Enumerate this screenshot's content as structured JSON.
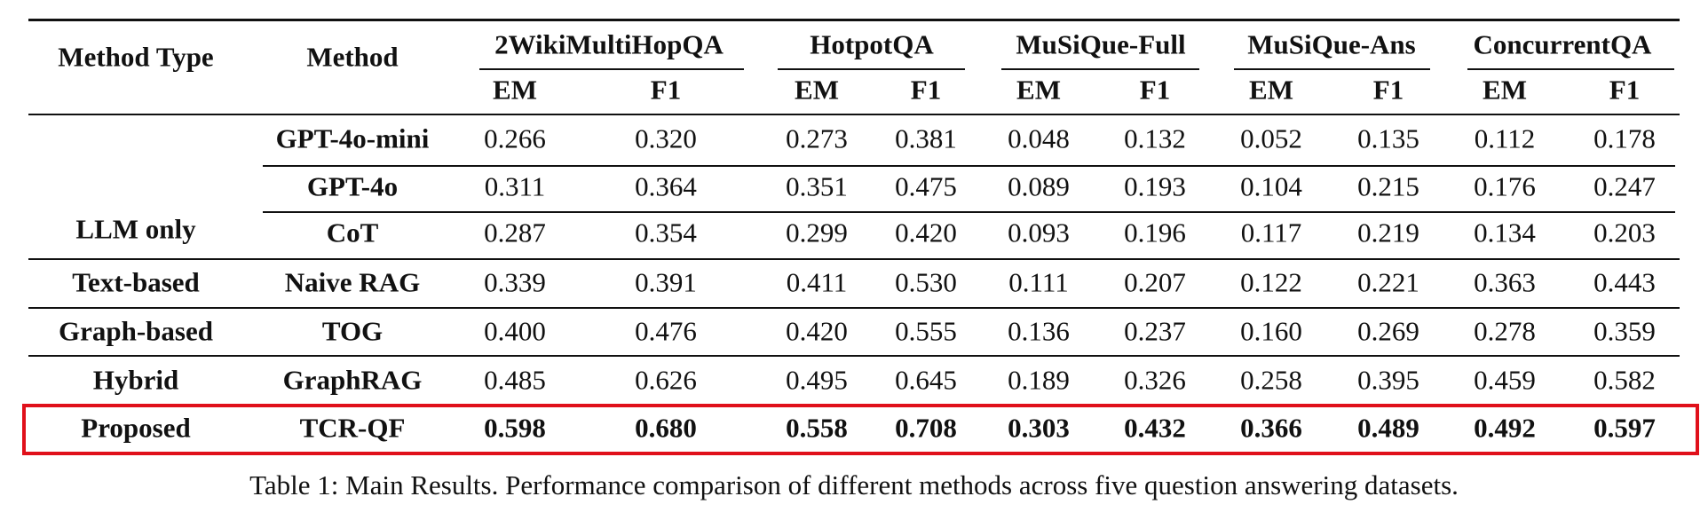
{
  "table": {
    "header": {
      "method_type": "Method Type",
      "method": "Method",
      "datasets": [
        "2WikiMultiHopQA",
        "HotpotQA",
        "MuSiQue-Full",
        "MuSiQue-Ans",
        "ConcurrentQA"
      ],
      "metrics": [
        "EM",
        "F1"
      ]
    },
    "rows": [
      {
        "type": "",
        "method": "GPT-4o-mini",
        "values": [
          "0.266",
          "0.320",
          "0.273",
          "0.381",
          "0.048",
          "0.132",
          "0.052",
          "0.135",
          "0.112",
          "0.178"
        ],
        "bold": false
      },
      {
        "type": "",
        "method": "GPT-4o",
        "values": [
          "0.311",
          "0.364",
          "0.351",
          "0.475",
          "0.089",
          "0.193",
          "0.104",
          "0.215",
          "0.176",
          "0.247"
        ],
        "bold": false
      },
      {
        "type": "LLM only",
        "method": "CoT",
        "values": [
          "0.287",
          "0.354",
          "0.299",
          "0.420",
          "0.093",
          "0.196",
          "0.117",
          "0.219",
          "0.134",
          "0.203"
        ],
        "bold": false
      },
      {
        "type": "Text-based",
        "method": "Naive RAG",
        "values": [
          "0.339",
          "0.391",
          "0.411",
          "0.530",
          "0.111",
          "0.207",
          "0.122",
          "0.221",
          "0.363",
          "0.443"
        ],
        "bold": false
      },
      {
        "type": "Graph-based",
        "method": "TOG",
        "values": [
          "0.400",
          "0.476",
          "0.420",
          "0.555",
          "0.136",
          "0.237",
          "0.160",
          "0.269",
          "0.278",
          "0.359"
        ],
        "bold": false
      },
      {
        "type": "Hybrid",
        "method": "GraphRAG",
        "values": [
          "0.485",
          "0.626",
          "0.495",
          "0.645",
          "0.189",
          "0.326",
          "0.258",
          "0.395",
          "0.459",
          "0.582"
        ],
        "bold": false
      },
      {
        "type": "Proposed",
        "method": "TCR-QF",
        "values": [
          "0.598",
          "0.680",
          "0.558",
          "0.708",
          "0.303",
          "0.432",
          "0.366",
          "0.489",
          "0.492",
          "0.597"
        ],
        "bold": true
      }
    ]
  },
  "caption": "Table 1: Main Results. Performance comparison of different methods across five question answering datasets.",
  "colors": {
    "rule": "#111111",
    "highlight": "#e0101a"
  }
}
